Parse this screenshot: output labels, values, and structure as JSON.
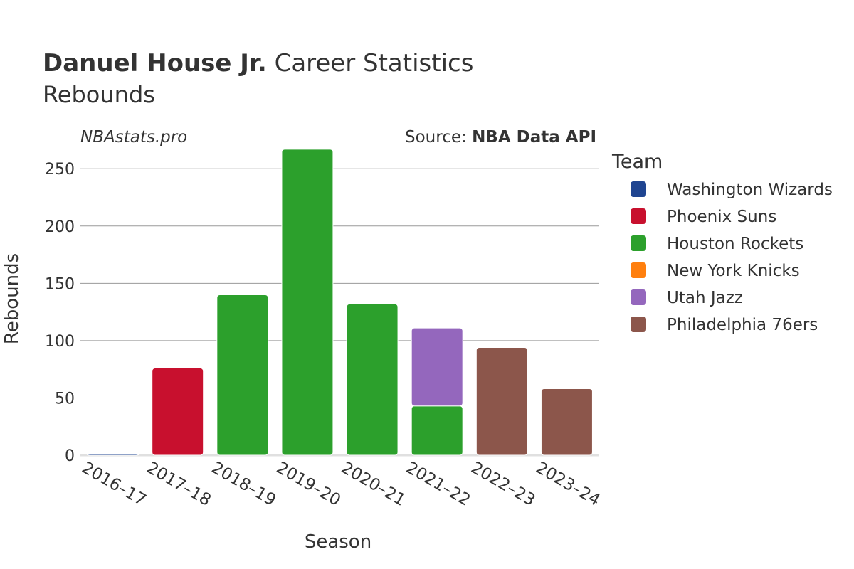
{
  "header": {
    "title_bold": "Danuel House Jr.",
    "title_rest": " Career Statistics",
    "subtitle": "Rebounds",
    "watermark": "NBAstats.pro",
    "source_prefix": "Source: ",
    "source_bold": "NBA Data API"
  },
  "legend": {
    "title": "Team"
  },
  "chart_data": {
    "type": "bar",
    "stacked": true,
    "xlabel": "Season",
    "ylabel": "Rebounds",
    "ylim": [
      0,
      270
    ],
    "yticks": [
      0,
      50,
      100,
      150,
      200,
      250
    ],
    "grid": true,
    "legend_position": "right",
    "categories": [
      "2016–17",
      "2017–18",
      "2018–19",
      "2019–20",
      "2020–21",
      "2021–22",
      "2022–23",
      "2023–24"
    ],
    "series": [
      {
        "name": "Washington Wizards",
        "color": "#1f4591",
        "values": [
          1,
          0,
          0,
          0,
          0,
          0,
          0,
          0
        ]
      },
      {
        "name": "Phoenix Suns",
        "color": "#c8102e",
        "values": [
          0,
          76,
          0,
          0,
          0,
          0,
          0,
          0
        ]
      },
      {
        "name": "Houston Rockets",
        "color": "#2ca02c",
        "values": [
          0,
          0,
          140,
          267,
          132,
          43,
          0,
          0
        ]
      },
      {
        "name": "New York Knicks",
        "color": "#ff7f0e",
        "values": [
          0,
          0,
          0,
          0,
          0,
          0,
          0,
          0
        ]
      },
      {
        "name": "Utah Jazz",
        "color": "#9467bd",
        "values": [
          0,
          0,
          0,
          0,
          0,
          68,
          0,
          0
        ]
      },
      {
        "name": "Philadelphia 76ers",
        "color": "#8c564b",
        "values": [
          0,
          0,
          0,
          0,
          0,
          0,
          94,
          58
        ]
      }
    ]
  }
}
